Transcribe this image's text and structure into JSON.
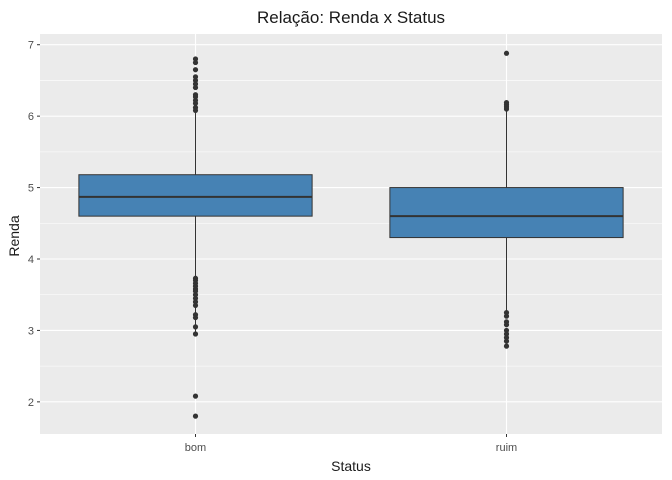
{
  "chart_data": {
    "type": "boxplot",
    "title": "Relação: Renda x Status",
    "xlabel": "Status",
    "ylabel": "Renda",
    "ylim": [
      1.55,
      7.15
    ],
    "yticks": [
      2,
      3,
      4,
      5,
      6,
      7
    ],
    "ytick_labels": [
      "2",
      "3",
      "4",
      "5",
      "6",
      "7"
    ],
    "categories": [
      "bom",
      "ruim"
    ],
    "grid": true,
    "fill_color": "#4682B4",
    "panel_background": "#EBEBEB",
    "boxes": [
      {
        "category": "bom",
        "lower_whisker": 2.95,
        "q1": 4.6,
        "median": 4.87,
        "q3": 5.18,
        "upper_whisker": 6.05,
        "outliers": [
          6.8,
          6.75,
          6.65,
          6.55,
          6.5,
          6.45,
          6.4,
          6.3,
          6.27,
          6.22,
          6.18,
          6.12,
          6.08,
          3.73,
          3.7,
          3.66,
          3.62,
          3.58,
          3.55,
          3.5,
          3.45,
          3.4,
          3.35,
          3.22,
          3.18,
          3.05,
          2.95,
          2.08,
          1.8
        ]
      },
      {
        "category": "ruim",
        "lower_whisker": 3.27,
        "q1": 4.3,
        "median": 4.6,
        "q3": 5.0,
        "upper_whisker": 6.07,
        "outliers": [
          6.88,
          6.19,
          6.16,
          6.13,
          6.1,
          3.25,
          3.2,
          3.12,
          3.08,
          3.0,
          2.95,
          2.9,
          2.85,
          2.78
        ]
      }
    ]
  }
}
